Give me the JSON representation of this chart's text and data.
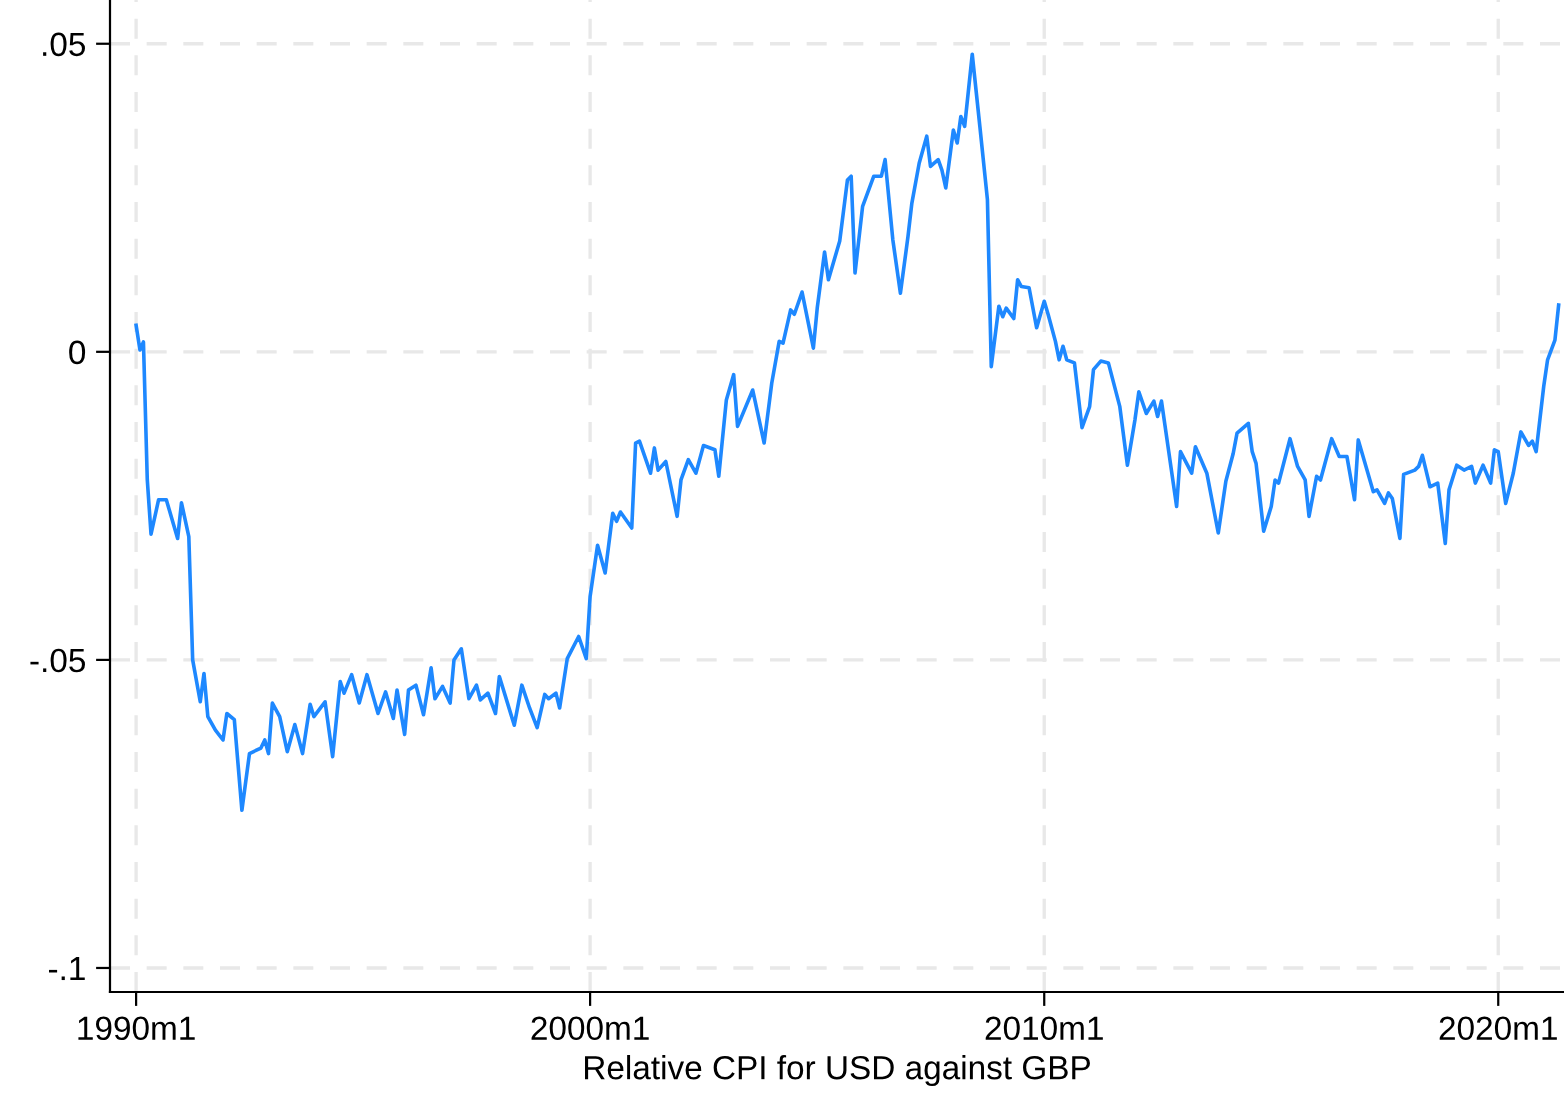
{
  "chart_data": {
    "type": "line",
    "xlabel": "Relative CPI for USD against GBP",
    "xlim": [
      "1989-06-05",
      "2021-06-13"
    ],
    "xticks": [
      {
        "value": "1990-01",
        "label": "1990m1"
      },
      {
        "value": "2000-01",
        "label": "2000m1"
      },
      {
        "value": "2010-01",
        "label": "2010m1"
      },
      {
        "value": "2020-01",
        "label": "2020m1"
      }
    ],
    "ylim": [
      -0.1039,
      0.0571
    ],
    "yticks": [
      {
        "value": -0.1,
        "label": "-.1"
      },
      {
        "value": -0.05,
        "label": "-.05"
      },
      {
        "value": 0,
        "label": "0"
      },
      {
        "value": 0.05,
        "label": ".05"
      }
    ],
    "grid": true,
    "series": [
      {
        "color": "#1e88ff",
        "x": [
          "1990-01",
          "1990-02",
          "1990-03",
          "1990-04",
          "1990-05",
          "1990-07",
          "1990-09",
          "1990-12",
          "1991-01",
          "1991-03",
          "1991-04",
          "1991-06",
          "1991-07",
          "1991-08",
          "1991-10",
          "1991-12",
          "1992-01",
          "1992-03",
          "1992-05",
          "1992-07",
          "1992-10",
          "1992-11",
          "1992-12",
          "1993-01",
          "1993-03",
          "1993-05",
          "1993-07",
          "1993-09",
          "1993-11",
          "1993-12",
          "1994-03",
          "1994-05",
          "1994-07",
          "1994-08",
          "1994-10",
          "1994-12",
          "1995-02",
          "1995-05",
          "1995-07",
          "1995-09",
          "1995-10",
          "1995-12",
          "1996-01",
          "1996-03",
          "1996-05",
          "1996-07",
          "1996-08",
          "1996-10",
          "1996-12",
          "1997-01",
          "1997-03",
          "1997-05",
          "1997-07",
          "1997-08",
          "1997-10",
          "1997-12",
          "1998-01",
          "1998-05",
          "1998-07",
          "1998-09",
          "1998-11",
          "1999-01",
          "1999-02",
          "1999-04",
          "1999-05",
          "1999-07",
          "1999-10",
          "1999-12",
          "2000-01",
          "2000-03",
          "2000-05",
          "2000-07",
          "2000-08",
          "2000-09",
          "2000-12",
          "2001-01",
          "2001-02",
          "2001-05",
          "2001-06",
          "2001-07",
          "2001-09",
          "2001-12",
          "2002-01",
          "2002-03",
          "2002-05",
          "2002-07",
          "2002-10",
          "2002-11",
          "2003-01",
          "2003-03",
          "2003-04",
          "2003-08",
          "2003-11",
          "2004-01",
          "2004-03",
          "2004-04",
          "2004-06",
          "2004-07",
          "2004-09",
          "2004-12",
          "2005-01",
          "2005-03",
          "2005-04",
          "2005-07",
          "2005-09",
          "2005-10",
          "2005-11",
          "2006-01",
          "2006-04",
          "2006-06",
          "2006-07",
          "2006-09",
          "2006-11",
          "2007-01",
          "2007-02",
          "2007-04",
          "2007-06",
          "2007-07",
          "2007-09",
          "2007-10",
          "2007-11",
          "2008-01",
          "2008-02",
          "2008-03",
          "2008-04",
          "2008-06",
          "2008-08",
          "2008-10",
          "2008-11",
          "2009-01",
          "2009-02",
          "2009-03",
          "2009-05",
          "2009-06",
          "2009-07",
          "2009-09",
          "2009-11",
          "2010-01",
          "2010-02",
          "2010-04",
          "2010-05",
          "2010-06",
          "2010-07",
          "2010-09",
          "2010-11",
          "2011-01",
          "2011-02",
          "2011-04",
          "2011-06",
          "2011-09",
          "2011-11",
          "2012-01",
          "2012-02",
          "2012-04",
          "2012-06",
          "2012-07",
          "2012-08",
          "2012-12",
          "2013-01",
          "2013-04",
          "2013-05",
          "2013-08",
          "2013-11",
          "2014-01",
          "2014-03",
          "2014-04",
          "2014-07",
          "2014-08",
          "2014-09",
          "2014-11",
          "2015-01",
          "2015-02",
          "2015-03",
          "2015-06",
          "2015-08",
          "2015-10",
          "2015-11",
          "2016-01",
          "2016-02",
          "2016-05",
          "2016-07",
          "2016-09",
          "2016-11",
          "2016-12",
          "2017-02",
          "2017-04",
          "2017-05",
          "2017-07",
          "2017-08",
          "2017-09",
          "2017-11",
          "2017-12",
          "2018-03",
          "2018-04",
          "2018-05",
          "2018-07",
          "2018-09",
          "2018-11",
          "2018-12",
          "2019-02",
          "2019-04",
          "2019-06",
          "2019-07",
          "2019-09",
          "2019-11",
          "2019-12",
          "2020-01",
          "2020-03",
          "2020-05",
          "2020-07",
          "2020-09",
          "2020-10",
          "2020-11",
          "2021-01",
          "2021-02",
          "2021-04",
          "2021-05"
        ],
        "values": [
          0.0043,
          0.0003,
          0.0016,
          -0.0208,
          -0.0296,
          -0.024,
          -0.024,
          -0.0303,
          -0.0245,
          -0.03,
          -0.05,
          -0.0568,
          -0.0522,
          -0.0592,
          -0.0614,
          -0.063,
          -0.0587,
          -0.0597,
          -0.0744,
          -0.0652,
          -0.0643,
          -0.063,
          -0.0652,
          -0.057,
          -0.0592,
          -0.0649,
          -0.0605,
          -0.0652,
          -0.0572,
          -0.0592,
          -0.0568,
          -0.0657,
          -0.0535,
          -0.0554,
          -0.0524,
          -0.057,
          -0.0524,
          -0.0587,
          -0.0552,
          -0.0595,
          -0.0549,
          -0.0621,
          -0.0549,
          -0.0541,
          -0.0589,
          -0.0513,
          -0.0563,
          -0.0543,
          -0.057,
          -0.05,
          -0.0482,
          -0.0563,
          -0.0541,
          -0.0565,
          -0.0554,
          -0.0587,
          -0.0527,
          -0.0606,
          -0.0541,
          -0.0578,
          -0.061,
          -0.0556,
          -0.0563,
          -0.0554,
          -0.0578,
          -0.0498,
          -0.0462,
          -0.0498,
          -0.0397,
          -0.0314,
          -0.0359,
          -0.0262,
          -0.0275,
          -0.026,
          -0.0286,
          -0.0148,
          -0.0145,
          -0.0197,
          -0.0156,
          -0.0192,
          -0.0178,
          -0.0267,
          -0.0208,
          -0.0175,
          -0.0197,
          -0.0152,
          -0.0159,
          -0.0202,
          -0.0078,
          -0.0037,
          -0.0121,
          -0.0062,
          -0.0148,
          -0.0051,
          0.0017,
          0.0014,
          0.0068,
          0.0061,
          0.0097,
          0.0006,
          0.0071,
          0.0162,
          0.0117,
          0.018,
          0.0279,
          0.0285,
          0.0128,
          0.0236,
          0.0285,
          0.0285,
          0.0312,
          0.0182,
          0.0095,
          0.0187,
          0.0241,
          0.0306,
          0.035,
          0.0301,
          0.0312,
          0.0295,
          0.0266,
          0.036,
          0.0339,
          0.0382,
          0.0366,
          0.0483,
          0.0366,
          0.0247,
          -0.0024,
          0.0074,
          0.0057,
          0.0071,
          0.0054,
          0.0117,
          0.0106,
          0.0104,
          0.0039,
          0.0082,
          0.0061,
          0.0017,
          -0.0013,
          0.0009,
          -0.0013,
          -0.0018,
          -0.0123,
          -0.0089,
          -0.0029,
          -0.0015,
          -0.0018,
          -0.0089,
          -0.0184,
          -0.011,
          -0.0065,
          -0.01,
          -0.008,
          -0.0105,
          -0.008,
          -0.0251,
          -0.0162,
          -0.0197,
          -0.0154,
          -0.0197,
          -0.0294,
          -0.021,
          -0.0165,
          -0.0132,
          -0.0116,
          -0.0162,
          -0.0181,
          -0.0291,
          -0.0251,
          -0.0208,
          -0.0213,
          -0.0141,
          -0.0186,
          -0.0208,
          -0.0267,
          -0.0202,
          -0.0208,
          -0.0141,
          -0.017,
          -0.017,
          -0.024,
          -0.0143,
          -0.0186,
          -0.0227,
          -0.0224,
          -0.0246,
          -0.0229,
          -0.0238,
          -0.0303,
          -0.0199,
          -0.0192,
          -0.0186,
          -0.0168,
          -0.0219,
          -0.0213,
          -0.0311,
          -0.0224,
          -0.0184,
          -0.0192,
          -0.0186,
          -0.0213,
          -0.0184,
          -0.0213,
          -0.0159,
          -0.0162,
          -0.0246,
          -0.0197,
          -0.013,
          -0.0152,
          -0.0145,
          -0.0162,
          -0.0056,
          -0.0013,
          0.0019,
          0.0076
        ]
      }
    ]
  }
}
